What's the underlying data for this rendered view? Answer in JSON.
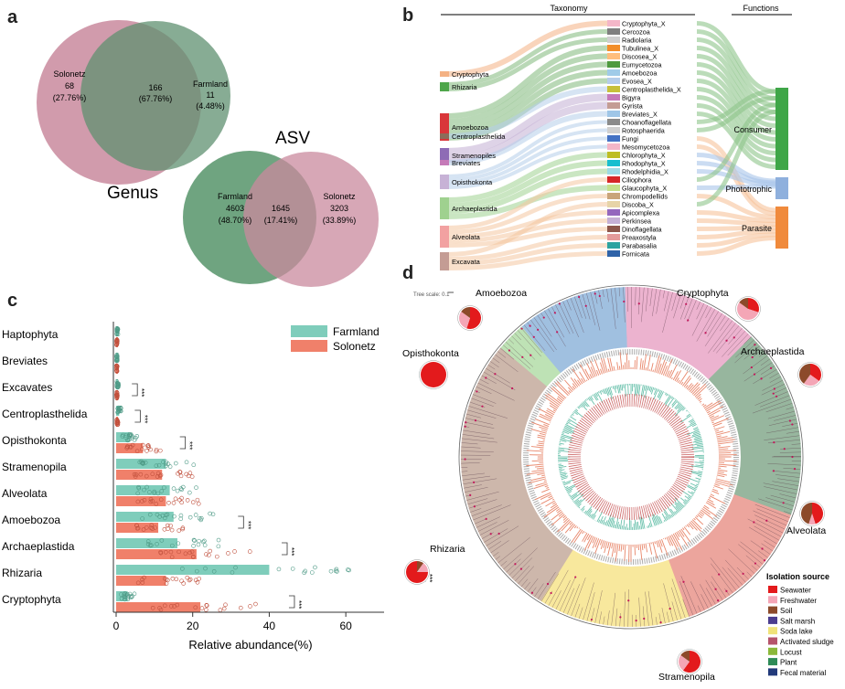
{
  "panels": {
    "a": "a",
    "b": "b",
    "c": "c",
    "d": "d"
  },
  "venn_genus": {
    "title": "Genus",
    "left": {
      "name": "Solonetz",
      "count": "68",
      "pct": "(27.76%)",
      "color": "#c98a9e"
    },
    "center": {
      "count": "166",
      "pct": "(67.76%)"
    },
    "right": {
      "name": "Farmland",
      "count": "11",
      "pct": "(4.48%)",
      "color": "#6f9e7f"
    }
  },
  "venn_asv": {
    "title": "ASV",
    "left": {
      "name": "Farmland",
      "count": "4603",
      "pct": "(48.70%)",
      "color": "#6a9c7b"
    },
    "center": {
      "count": "1645",
      "pct": "(17.41%)"
    },
    "right": {
      "name": "Solonetz",
      "count": "3203",
      "pct": "(33.89%)",
      "color": "#c98a9e"
    }
  },
  "sankey": {
    "taxonomy_header": "Taxonomy",
    "functions_header": "Functions",
    "left_nodes": [
      {
        "label": "Cryptophyta",
        "color": "#f4b183"
      },
      {
        "label": "Rhizaria",
        "color": "#4ea64a"
      },
      {
        "label": "Amoebozoa",
        "color": "#d9363a"
      },
      {
        "label": "Centroplasthelida",
        "color": "#8c6d5a"
      },
      {
        "label": "Stramenopiles",
        "color": "#8e6bb5"
      },
      {
        "label": "Breviates",
        "color": "#c57ab8"
      },
      {
        "label": "Opisthokonta",
        "color": "#c7b2d6"
      },
      {
        "label": "Archaeplastida",
        "color": "#9fd18f"
      },
      {
        "label": "Alveolata",
        "color": "#f2a1a1"
      },
      {
        "label": "Excavata",
        "color": "#c49c94"
      }
    ],
    "mid_nodes": [
      {
        "label": "Cryptophyta_X",
        "color": "#f4b6c8"
      },
      {
        "label": "Cercozoa",
        "color": "#7f7f7f"
      },
      {
        "label": "Radiolaria",
        "color": "#cfcfcf"
      },
      {
        "label": "Tubulinea_X",
        "color": "#f28e2b"
      },
      {
        "label": "Discosea_X",
        "color": "#ffbe7d"
      },
      {
        "label": "Eumycetozoa",
        "color": "#4e9a3f"
      },
      {
        "label": "Amoebozoa",
        "color": "#a0cbe8"
      },
      {
        "label": "Evosea_X",
        "color": "#b5cdea"
      },
      {
        "label": "Centroplasthelida_X",
        "color": "#c7c03a"
      },
      {
        "label": "Bigyra",
        "color": "#c579b9"
      },
      {
        "label": "Gyrista",
        "color": "#c49c94"
      },
      {
        "label": "Breviates_X",
        "color": "#9fc6e7"
      },
      {
        "label": "Choanoflagellata",
        "color": "#8b8b8b"
      },
      {
        "label": "Rotosphaerida",
        "color": "#d0d0d0"
      },
      {
        "label": "Fungi",
        "color": "#4472c4"
      },
      {
        "label": "Mesomycetozoa",
        "color": "#f4b6c8"
      },
      {
        "label": "Chlorophyta_X",
        "color": "#bdbd22"
      },
      {
        "label": "Rhodophyta_X",
        "color": "#17becf"
      },
      {
        "label": "Rhodelphidia_X",
        "color": "#9edae5"
      },
      {
        "label": "Ciliophora",
        "color": "#d62728"
      },
      {
        "label": "Glaucophyta_X",
        "color": "#c5e08c"
      },
      {
        "label": "Chrompodellids",
        "color": "#c9a47a"
      },
      {
        "label": "Discoba_X",
        "color": "#e7d4a8"
      },
      {
        "label": "Apicomplexa",
        "color": "#9467bd"
      },
      {
        "label": "Perkinsea",
        "color": "#c5b0d5"
      },
      {
        "label": "Dinoflagellata",
        "color": "#8c564b"
      },
      {
        "label": "Preaxostyla",
        "color": "#e49a9a"
      },
      {
        "label": "Parabasalia",
        "color": "#2ca3a0"
      },
      {
        "label": "Fornicata",
        "color": "#2f63a8"
      }
    ],
    "right_nodes": [
      {
        "label": "Consumer",
        "color": "#3fa648"
      },
      {
        "label": "Phototrophic",
        "color": "#8fb0dd"
      },
      {
        "label": "Parasite",
        "color": "#f08a3c"
      }
    ]
  },
  "chart_data": {
    "type": "bar",
    "categories": [
      "Haptophyta",
      "Breviates",
      "Excavates",
      "Centroplasthelida",
      "Opisthokonta",
      "Stramenopila",
      "Alveolata",
      "Amoebozoa",
      "Archaeplastida",
      "Rhizaria",
      "Cryptophyta"
    ],
    "series": [
      {
        "name": "Farmland",
        "color": "#7fcdbb",
        "values": [
          0.3,
          0.2,
          0.4,
          0.8,
          3.5,
          13,
          14,
          15,
          16,
          40,
          3
        ]
      },
      {
        "name": "Solonetz",
        "color": "#f0806a",
        "values": [
          0.2,
          0.2,
          0.2,
          0.3,
          7,
          12,
          13,
          11,
          21,
          13,
          22
        ]
      }
    ],
    "xlabel": "Relative abundance(%)",
    "xticks": [
      "0",
      "20",
      "40",
      "60"
    ],
    "xlim": [
      0,
      70
    ],
    "legend_position": "top-right",
    "significance": [
      {
        "category": "Excavates",
        "label": "***"
      },
      {
        "category": "Centroplasthelida",
        "label": "***"
      },
      {
        "category": "Opisthokonta",
        "label": "***"
      },
      {
        "category": "Amoebozoa",
        "label": "***"
      },
      {
        "category": "Archaeplastida",
        "label": "***"
      },
      {
        "category": "Rhizaria",
        "label": "***"
      },
      {
        "category": "Cryptophyta",
        "label": "***"
      }
    ]
  },
  "tree": {
    "tree_scale": "Tree scale: 0.1",
    "clades": [
      {
        "label": "Amoebozoa",
        "color": "#3f7fc0"
      },
      {
        "label": "Cryptophyta",
        "color": "#d9669f"
      },
      {
        "label": "Archaeplastida",
        "color": "#2e6b3c"
      },
      {
        "label": "Alveolata",
        "color": "#d84a3a"
      },
      {
        "label": "Stramenopila",
        "color": "#f2d23a"
      },
      {
        "label": "Rhizaria",
        "color": "#9b6e55"
      },
      {
        "label": "Opisthokonta",
        "color": "#7cc46a"
      }
    ],
    "legend_title": "Isolation source",
    "legend_items": [
      {
        "label": "Seawater",
        "color": "#e31a1c"
      },
      {
        "label": "Freshwater",
        "color": "#f4a6b6"
      },
      {
        "label": "Soil",
        "color": "#8c4a2a"
      },
      {
        "label": "Salt marsh",
        "color": "#4b3d8f"
      },
      {
        "label": "Soda lake",
        "color": "#f0e37a"
      },
      {
        "label": "Activated sludge",
        "color": "#b5546b"
      },
      {
        "label": "Locust",
        "color": "#8bb83a"
      },
      {
        "label": "Plant",
        "color": "#2e8b57"
      },
      {
        "label": "Fecal material",
        "color": "#223a7a"
      }
    ]
  }
}
